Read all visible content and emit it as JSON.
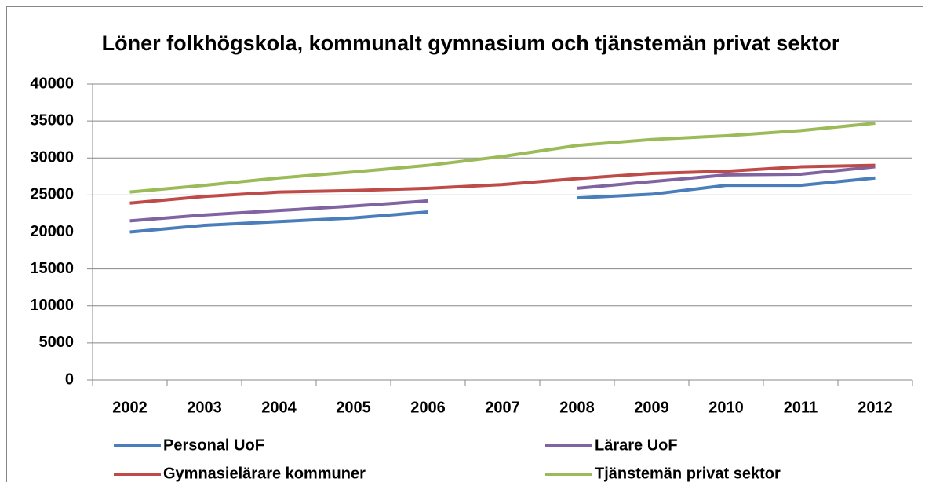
{
  "chart_data": {
    "type": "line",
    "title": "Löner folkhögskola, kommunalt gymnasium och tjänstemän privat sektor",
    "categories": [
      "2002",
      "2003",
      "2004",
      "2005",
      "2006",
      "2007",
      "2008",
      "2009",
      "2010",
      "2011",
      "2012"
    ],
    "series": [
      {
        "name": "Personal UoF",
        "color": "#4a7ebb",
        "values": [
          20000,
          20900,
          21400,
          21900,
          22700,
          null,
          24600,
          25100,
          26300,
          26300,
          27300
        ]
      },
      {
        "name": "Lärare UoF",
        "color": "#8064a2",
        "values": [
          21500,
          22300,
          22900,
          23500,
          24200,
          null,
          25900,
          26800,
          27700,
          27800,
          28800
        ]
      },
      {
        "name": "Gymnasielärare kommuner",
        "color": "#be4b48",
        "values": [
          23900,
          24800,
          25400,
          25600,
          25900,
          26400,
          27200,
          27900,
          28200,
          28800,
          29000
        ]
      },
      {
        "name": "Tjänstemän privat sektor",
        "color": "#9bbb59",
        "values": [
          25400,
          26300,
          27300,
          28100,
          29000,
          30200,
          31700,
          32500,
          33000,
          33700,
          34700
        ]
      }
    ],
    "ylim": [
      0,
      40000
    ],
    "yticks": [
      0,
      5000,
      10000,
      15000,
      20000,
      25000,
      30000,
      35000,
      40000
    ],
    "grid": true,
    "legend": "bottom"
  }
}
